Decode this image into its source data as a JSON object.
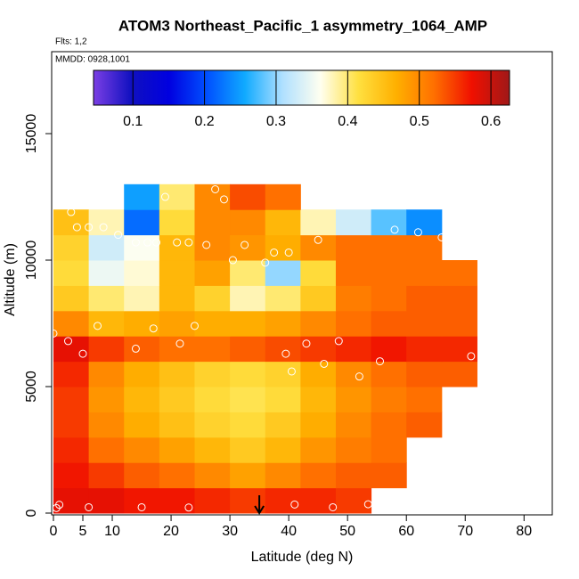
{
  "chart_data": {
    "type": "heatmap",
    "title": "ATOM3 Northeast_Pacific_1 asymmetry_1064_AMP",
    "subtitle": "Flts: 1,2",
    "annotation": "MMDD: 0928,1001",
    "xlabel": "Latitude (deg N)",
    "ylabel": "Altitude (m)",
    "xlim": [
      -0.3,
      84.8
    ],
    "ylim": [
      -70,
      18240
    ],
    "xticks": [
      0,
      5,
      10,
      20,
      30,
      40,
      50,
      60,
      70,
      80
    ],
    "yticks": [
      0,
      5000,
      10000,
      15000
    ],
    "x_edges": [
      0,
      6,
      12,
      18,
      24,
      30,
      36,
      42,
      48,
      54,
      60,
      66,
      72
    ],
    "y_edges": [
      0,
      1000,
      2000,
      3000,
      4000,
      5000,
      6000,
      7000,
      8000,
      9000,
      10000,
      11000,
      12000,
      13000
    ],
    "z": [
      [
        0.58,
        0.58,
        0.57,
        0.57,
        0.56,
        0.55,
        0.56,
        0.56,
        0.55,
        null,
        null,
        null
      ],
      [
        0.57,
        0.55,
        0.53,
        0.52,
        0.5,
        0.48,
        0.5,
        0.52,
        0.53,
        0.53,
        null,
        null
      ],
      [
        0.56,
        0.52,
        0.5,
        0.48,
        0.46,
        0.44,
        0.46,
        0.49,
        0.51,
        0.52,
        null,
        null
      ],
      [
        0.55,
        0.5,
        0.47,
        0.45,
        0.43,
        0.42,
        0.44,
        0.47,
        0.5,
        0.52,
        0.53,
        null
      ],
      [
        0.55,
        0.49,
        0.46,
        0.44,
        0.42,
        0.41,
        0.42,
        0.46,
        0.49,
        0.51,
        0.52,
        null
      ],
      [
        0.56,
        0.5,
        0.47,
        0.45,
        0.43,
        0.42,
        0.43,
        0.47,
        0.5,
        0.52,
        0.53,
        0.53
      ],
      [
        0.58,
        0.55,
        0.53,
        0.52,
        0.52,
        0.53,
        0.54,
        0.55,
        0.56,
        0.57,
        0.56,
        0.56
      ],
      [
        0.5,
        0.46,
        0.47,
        0.48,
        0.47,
        0.47,
        0.48,
        0.5,
        0.52,
        0.53,
        0.53,
        0.53
      ],
      [
        0.44,
        0.4,
        0.38,
        0.46,
        0.43,
        0.38,
        0.4,
        0.44,
        0.51,
        0.52,
        0.53,
        0.53
      ],
      [
        0.42,
        0.35,
        0.37,
        0.46,
        0.48,
        0.4,
        0.3,
        0.42,
        0.52,
        0.52,
        0.52,
        0.52
      ],
      [
        0.43,
        0.33,
        0.36,
        0.46,
        0.5,
        0.49,
        0.47,
        0.5,
        0.52,
        0.52,
        0.52,
        null
      ],
      [
        0.45,
        0.38,
        0.22,
        0.42,
        0.5,
        0.5,
        0.46,
        0.38,
        0.33,
        0.28,
        0.24,
        null
      ],
      [
        null,
        null,
        0.25,
        0.4,
        0.5,
        0.54,
        0.52,
        null,
        null,
        null,
        null,
        null
      ]
    ],
    "colorscale": [
      "#7b3fe4",
      "#1010c0",
      "#0000e0",
      "#0050ff",
      "#10aaff",
      "#b0e0ff",
      "#fffff0",
      "#ffe040",
      "#ffb000",
      "#ff7000",
      "#f01000",
      "#a01818"
    ],
    "colorbar_lim": [
      0.045,
      0.626
    ],
    "colorbar_ticks": [
      0.1,
      0.2,
      0.3,
      0.4,
      0.5,
      0.6
    ],
    "points_x": [
      0.5,
      1,
      6,
      15,
      23,
      41,
      47.5,
      53.5,
      0,
      2.5,
      5,
      7.5,
      14,
      17,
      21.5,
      24,
      39.5,
      40.5,
      43,
      46,
      48.5,
      52,
      55.5,
      71,
      3,
      4,
      6,
      8.5,
      11,
      11,
      14,
      16,
      19,
      17.5,
      21,
      23,
      27.5,
      26,
      29,
      30.5,
      32.5,
      36,
      37.5,
      40,
      45,
      58,
      62,
      66,
      69
    ],
    "points_y": [
      200,
      330,
      230,
      230,
      220,
      340,
      230,
      350,
      7100,
      6800,
      6300,
      7400,
      6500,
      7300,
      6700,
      7400,
      6300,
      5600,
      6700,
      5900,
      6800,
      5400,
      6000,
      6200,
      11900,
      11300,
      11300,
      11300,
      12400,
      11000,
      10700,
      10700,
      12500,
      10700,
      10700,
      10700,
      12800,
      10600,
      12400,
      10000,
      10600,
      9900,
      10300,
      10300,
      10800,
      11200,
      11100,
      10900,
      10900
    ],
    "arrow_x": 35
  }
}
